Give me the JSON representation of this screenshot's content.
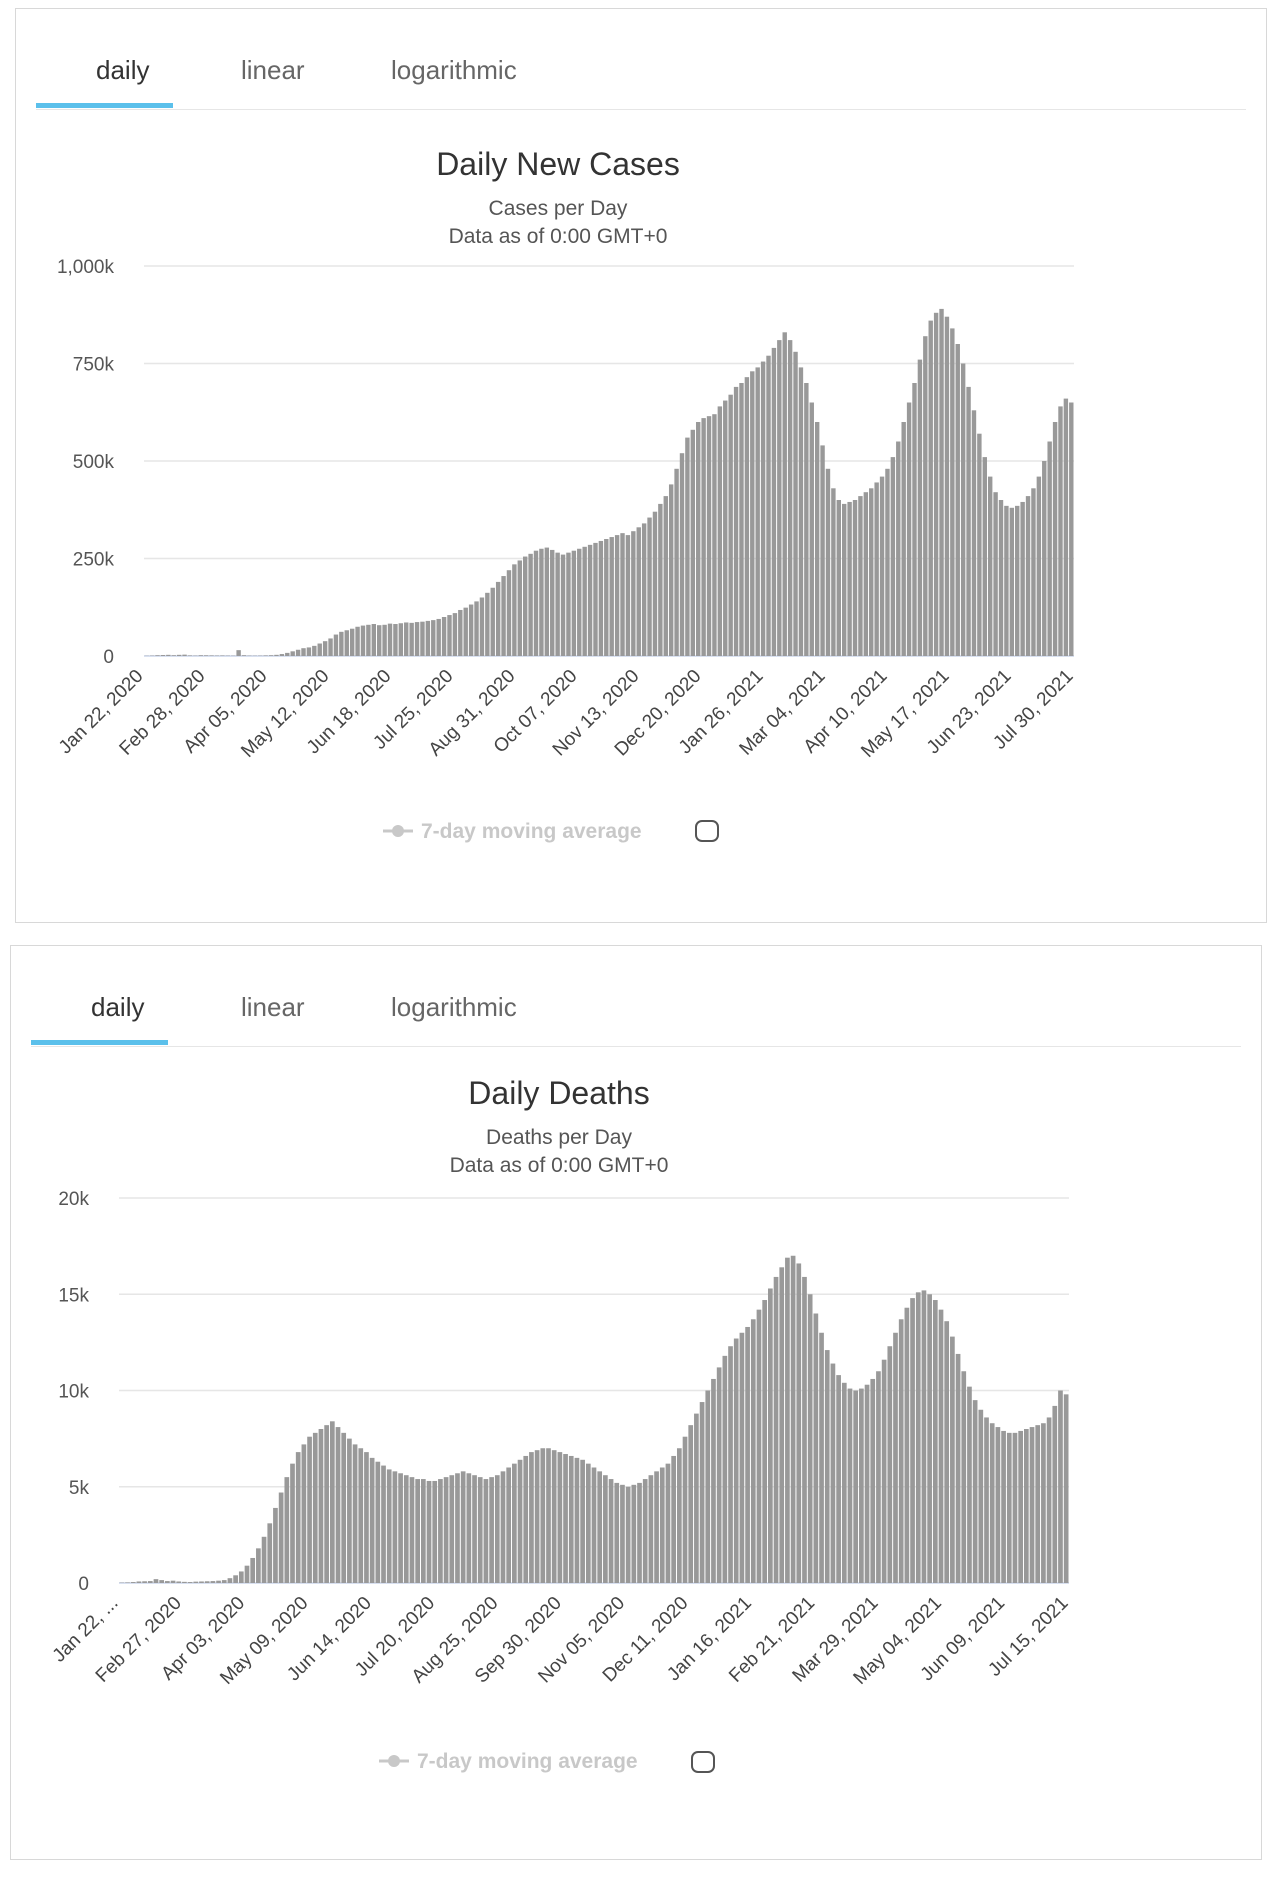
{
  "tabs": [
    "daily",
    "linear",
    "logarithmic"
  ],
  "legend_label": "7-day moving average",
  "chart_data": [
    {
      "type": "bar",
      "title": "Daily New Cases",
      "subtitle": "Cases per Day",
      "subtitle2": "Data as of 0:00 GMT+0",
      "xlabel": "",
      "ylabel": "",
      "ylim": [
        0,
        1000000
      ],
      "yticks": [
        0,
        250000,
        500000,
        750000,
        1000000
      ],
      "ytick_labels": [
        "0",
        "250k",
        "500k",
        "750k",
        "1,000k"
      ],
      "x_tick_labels": [
        "Jan 22, 2020",
        "Feb 28, 2020",
        "Apr 05, 2020",
        "May 12, 2020",
        "Jun 18, 2020",
        "Jul 25, 2020",
        "Aug 31, 2020",
        "Oct 07, 2020",
        "Nov 13, 2020",
        "Dec 20, 2020",
        "Jan 26, 2021",
        "Mar 04, 2021",
        "Apr 10, 2021",
        "May 17, 2021",
        "Jun 23, 2021",
        "Jul 30, 2021"
      ],
      "series": [
        {
          "name": "Daily New Cases",
          "color": "#999999",
          "values": [
            600,
            1000,
            2000,
            2500,
            3000,
            2000,
            3000,
            3500,
            1500,
            1000,
            2000,
            1800,
            1500,
            1200,
            1400,
            1000,
            800,
            15000,
            2000,
            1000,
            800,
            1000,
            1500,
            2000,
            3000,
            5000,
            8000,
            12000,
            16000,
            20000,
            22000,
            26000,
            32000,
            38000,
            45000,
            55000,
            62000,
            66000,
            70000,
            75000,
            78000,
            80000,
            82000,
            79000,
            80000,
            83000,
            82000,
            84000,
            86000,
            85000,
            87000,
            88000,
            90000,
            92000,
            95000,
            100000,
            105000,
            110000,
            118000,
            124000,
            132000,
            140000,
            150000,
            162000,
            175000,
            190000,
            205000,
            220000,
            235000,
            245000,
            255000,
            262000,
            270000,
            275000,
            278000,
            272000,
            265000,
            260000,
            265000,
            270000,
            275000,
            280000,
            285000,
            290000,
            295000,
            300000,
            305000,
            310000,
            315000,
            310000,
            320000,
            330000,
            340000,
            355000,
            370000,
            390000,
            410000,
            440000,
            480000,
            520000,
            560000,
            580000,
            600000,
            610000,
            615000,
            620000,
            640000,
            655000,
            670000,
            690000,
            700000,
            715000,
            730000,
            740000,
            755000,
            770000,
            790000,
            810000,
            830000,
            810000,
            780000,
            740000,
            700000,
            650000,
            600000,
            540000,
            480000,
            430000,
            400000,
            390000,
            395000,
            400000,
            410000,
            420000,
            430000,
            445000,
            460000,
            480000,
            510000,
            550000,
            600000,
            650000,
            700000,
            760000,
            820000,
            860000,
            880000,
            890000,
            870000,
            840000,
            800000,
            750000,
            690000,
            630000,
            570000,
            510000,
            460000,
            420000,
            400000,
            385000,
            380000,
            385000,
            395000,
            410000,
            430000,
            460000,
            500000,
            550000,
            600000,
            640000,
            660000,
            650000
          ]
        }
      ]
    },
    {
      "type": "bar",
      "title": "Daily Deaths",
      "subtitle": "Deaths per Day",
      "subtitle2": "Data as of 0:00 GMT+0",
      "xlabel": "",
      "ylabel": "",
      "ylim": [
        0,
        20000
      ],
      "yticks": [
        0,
        5000,
        10000,
        15000,
        20000
      ],
      "ytick_labels": [
        "0",
        "5k",
        "10k",
        "15k",
        "20k"
      ],
      "x_tick_labels": [
        "Jan 22, ...",
        "Feb 27, 2020",
        "Apr 03, 2020",
        "May 09, 2020",
        "Jun 14, 2020",
        "Jul 20, 2020",
        "Aug 25, 2020",
        "Sep 30, 2020",
        "Nov 05, 2020",
        "Dec 11, 2020",
        "Jan 16, 2021",
        "Feb 21, 2021",
        "Mar 29, 2021",
        "May 04, 2021",
        "Jun 09, 2021",
        "Jul 15, 2021"
      ],
      "series": [
        {
          "name": "Daily Deaths",
          "color": "#999999",
          "values": [
            20,
            30,
            50,
            80,
            90,
            100,
            200,
            150,
            100,
            120,
            80,
            60,
            50,
            70,
            80,
            90,
            100,
            120,
            150,
            250,
            400,
            600,
            900,
            1300,
            1800,
            2400,
            3100,
            3900,
            4700,
            5500,
            6200,
            6800,
            7200,
            7600,
            7800,
            8000,
            8200,
            8400,
            8100,
            7800,
            7500,
            7200,
            7000,
            6800,
            6500,
            6300,
            6100,
            5900,
            5800,
            5700,
            5600,
            5500,
            5400,
            5400,
            5300,
            5300,
            5400,
            5500,
            5600,
            5700,
            5800,
            5700,
            5600,
            5500,
            5400,
            5500,
            5600,
            5800,
            6000,
            6200,
            6400,
            6600,
            6800,
            6900,
            7000,
            7000,
            6900,
            6800,
            6700,
            6600,
            6500,
            6400,
            6200,
            6000,
            5800,
            5600,
            5400,
            5200,
            5100,
            5000,
            5100,
            5200,
            5400,
            5600,
            5800,
            6000,
            6200,
            6600,
            7000,
            7600,
            8200,
            8800,
            9400,
            10000,
            10600,
            11200,
            11800,
            12300,
            12700,
            13000,
            13300,
            13700,
            14200,
            14700,
            15300,
            15900,
            16400,
            16900,
            17000,
            16600,
            15900,
            15000,
            14000,
            13000,
            12100,
            11400,
            10800,
            10400,
            10100,
            10000,
            10100,
            10300,
            10600,
            11000,
            11600,
            12300,
            13000,
            13700,
            14300,
            14800,
            15100,
            15200,
            15000,
            14700,
            14200,
            13600,
            12800,
            11900,
            11000,
            10200,
            9500,
            9000,
            8600,
            8300,
            8100,
            7900,
            7800,
            7800,
            7900,
            8000,
            8100,
            8200,
            8300,
            8600,
            9200,
            10000,
            9800
          ]
        }
      ]
    }
  ]
}
